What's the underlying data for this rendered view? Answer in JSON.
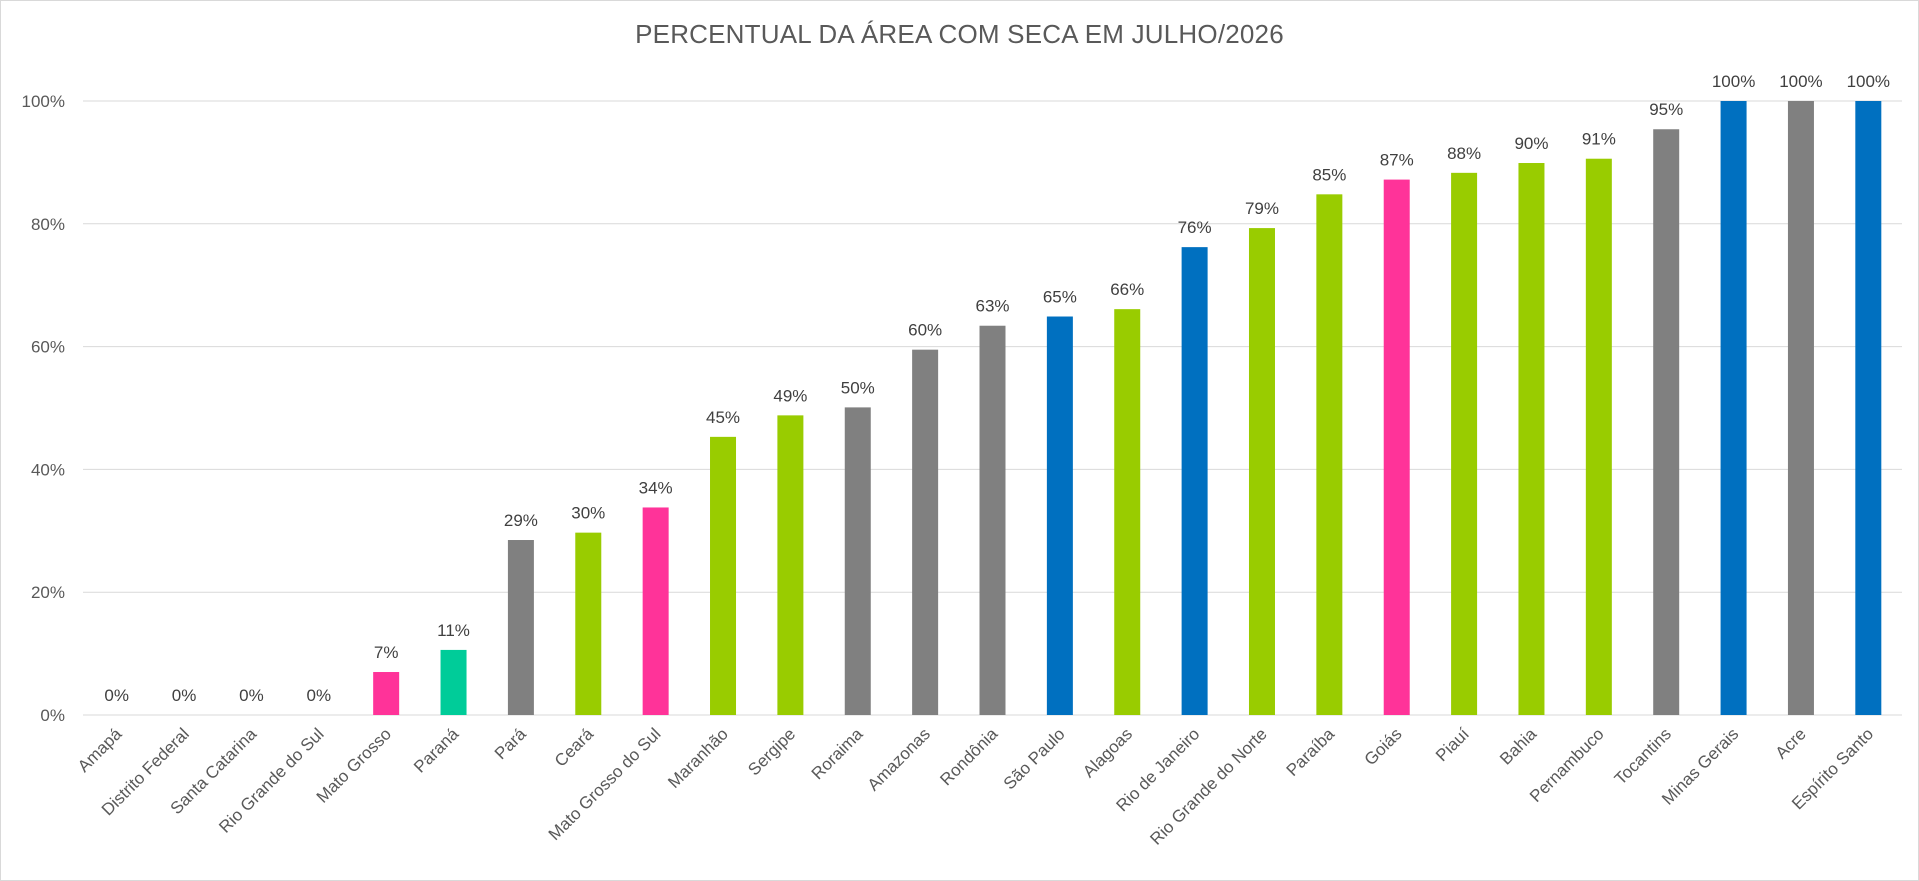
{
  "chart_data": {
    "type": "bar",
    "title": "PERCENTUAL DA ÁREA COM SECA EM JULHO/2026",
    "xlabel": "",
    "ylabel": "",
    "ylim": [
      0,
      100
    ],
    "yticks": [
      "0%",
      "20%",
      "40%",
      "60%",
      "80%",
      "100%"
    ],
    "grid": true,
    "categories": [
      "Amapá",
      "Distrito Federal",
      "Santa Catarina",
      "Rio Grande do Sul",
      "Mato Grosso",
      "Paraná",
      "Pará",
      "Ceará",
      "Mato Grosso do Sul",
      "Maranhão",
      "Sergipe",
      "Roraima",
      "Amazonas",
      "Rondônia",
      "São Paulo",
      "Alagoas",
      "Rio de Janeiro",
      "Rio Grande do Norte",
      "Paraíba",
      "Goiás",
      "Piauí",
      "Bahia",
      "Pernambuco",
      "Tocantins",
      "Minas Gerais",
      "Acre",
      "Espírito Santo"
    ],
    "values": [
      0,
      0,
      0,
      0,
      7,
      10.6,
      28.5,
      29.7,
      33.8,
      45.3,
      48.8,
      50.1,
      59.5,
      63.4,
      64.9,
      66.1,
      76.2,
      79.3,
      84.8,
      87.2,
      88.3,
      89.9,
      90.6,
      95.4,
      100,
      100,
      100
    ],
    "data_labels": [
      "0%",
      "0%",
      "0%",
      "0%",
      "7%",
      "11%",
      "29%",
      "30%",
      "34%",
      "45%",
      "49%",
      "50%",
      "60%",
      "63%",
      "65%",
      "66%",
      "76%",
      "79%",
      "85%",
      "87%",
      "88%",
      "90%",
      "91%",
      "95%",
      "100%",
      "100%",
      "100%"
    ],
    "colors": [
      "#99cc00",
      "#99cc00",
      "#99cc00",
      "#99cc00",
      "#ff3399",
      "#00cc99",
      "#808080",
      "#99cc00",
      "#ff3399",
      "#99cc00",
      "#99cc00",
      "#808080",
      "#808080",
      "#808080",
      "#0070c0",
      "#99cc00",
      "#0070c0",
      "#99cc00",
      "#99cc00",
      "#ff3399",
      "#99cc00",
      "#99cc00",
      "#99cc00",
      "#808080",
      "#0070c0",
      "#808080",
      "#0070c0"
    ],
    "gridline_color": "#d9d9d9"
  }
}
